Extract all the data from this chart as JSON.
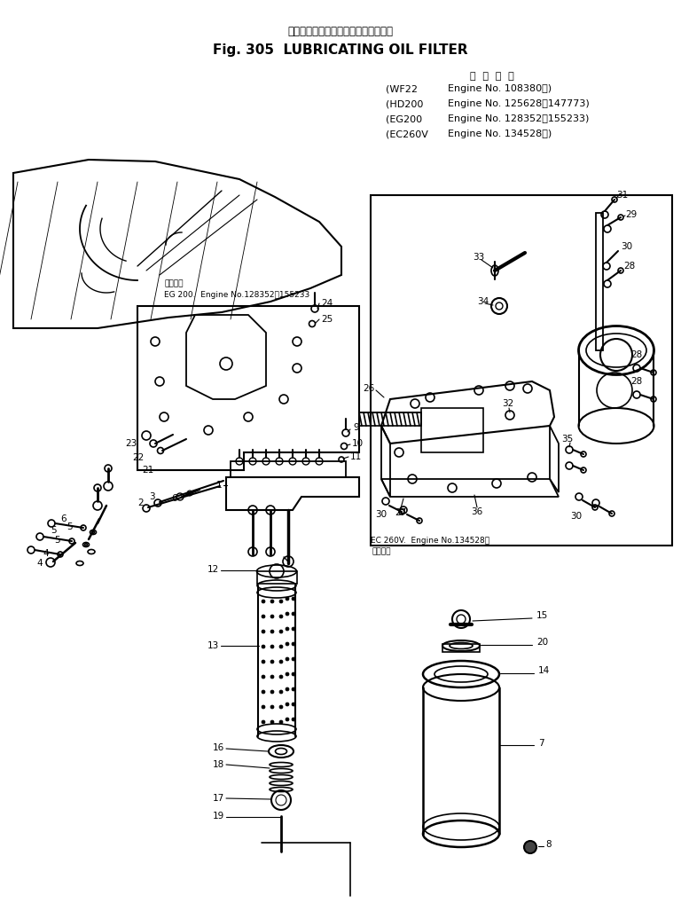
{
  "title_jp": "ルーブリケーティングオイルフィルタ",
  "title_en": "Fig. 305  LUBRICATING OIL FILTER",
  "app_header": "適  用  号  機",
  "app_lines": [
    [
      "(WF22   ",
      "Engine No. 108380～)"
    ],
    [
      "(HD200  ",
      "Engine No. 125628～147773)"
    ],
    [
      "(EG200  ",
      "Engine No. 128352～155233)"
    ],
    [
      "(EC260V ",
      "Engine No. 134528～)"
    ]
  ],
  "note_eg200_1": "適用号機",
  "note_eg200_2": "EG 200.  Engine No.128352～155233",
  "note_ec260v_1": "適用号機",
  "note_ec260v_2": "EC 260V.  Engine No.134528～",
  "bg": "#ffffff",
  "lc": "#000000"
}
